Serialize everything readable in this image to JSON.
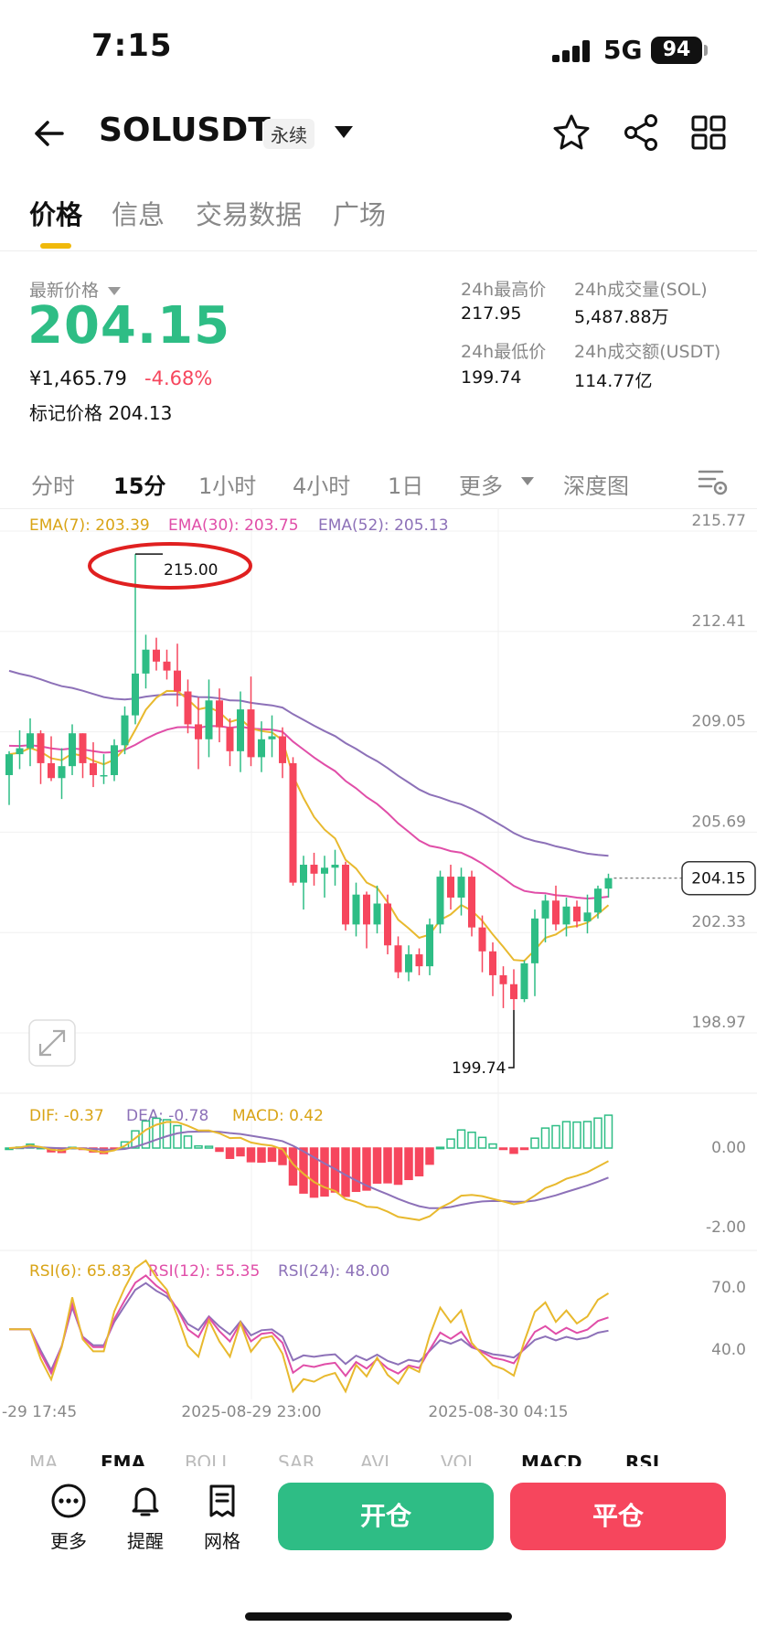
{
  "status_bar": {
    "time": "7:15",
    "network": "5G",
    "battery": "94"
  },
  "header": {
    "symbol": "SOLUSDT",
    "contract_type": "永续"
  },
  "tabs": [
    {
      "label": "价格",
      "active": true
    },
    {
      "label": "信息",
      "active": false
    },
    {
      "label": "交易数据",
      "active": false
    },
    {
      "label": "广场",
      "active": false
    }
  ],
  "price": {
    "label": "最新价格",
    "last": "204.15",
    "cny": "¥1,465.79",
    "change_pct": "-4.68%",
    "mark_label": "标记价格",
    "mark": "204.13"
  },
  "stats": {
    "high_label": "24h最高价",
    "high": "217.95",
    "low_label": "24h最低价",
    "low": "199.74",
    "vol_label": "24h成交量(SOL)",
    "vol": "5,487.88万",
    "amt_label": "24h成交额(USDT)",
    "amt": "114.77亿"
  },
  "timeframes": [
    "分时",
    "15分",
    "1小时",
    "4小时",
    "1日",
    "更多",
    "深度图"
  ],
  "active_timeframe": "15分",
  "chart_data": {
    "type": "candlestick",
    "ema_legend": {
      "ema7": "EMA(7): 203.39",
      "ema30": "EMA(30): 203.75",
      "ema52": "EMA(52): 205.13"
    },
    "y_ticks": [
      "215.77",
      "212.41",
      "209.05",
      "205.69",
      "202.33",
      "198.97"
    ],
    "ylim": [
      198.97,
      215.77
    ],
    "x_ticks": [
      "-29 17:45",
      "2025-08-29 23:00",
      "2025-08-30 04:15"
    ],
    "high_marker": "215.00",
    "low_marker": "199.74",
    "current_price_tag": "204.15",
    "candles": [
      [
        207.6,
        208.4,
        206.6,
        208.3
      ],
      [
        208.3,
        209.1,
        207.8,
        208.5
      ],
      [
        208.5,
        209.5,
        207.9,
        209.0
      ],
      [
        209.0,
        209.1,
        207.3,
        208.0
      ],
      [
        208.0,
        208.9,
        207.4,
        207.5
      ],
      [
        207.5,
        208.5,
        206.8,
        207.9
      ],
      [
        207.9,
        209.3,
        207.6,
        209.0
      ],
      [
        209.0,
        209.0,
        207.5,
        208.0
      ],
      [
        208.0,
        208.7,
        207.2,
        207.6
      ],
      [
        207.6,
        208.3,
        207.3,
        207.6
      ],
      [
        207.6,
        208.8,
        207.4,
        208.6
      ],
      [
        208.6,
        209.9,
        208.3,
        209.6
      ],
      [
        209.6,
        215.0,
        209.3,
        211.0
      ],
      [
        211.0,
        212.3,
        210.5,
        211.8
      ],
      [
        211.8,
        212.2,
        211.1,
        211.4
      ],
      [
        211.4,
        211.8,
        210.8,
        211.1
      ],
      [
        211.1,
        212.0,
        209.9,
        210.4
      ],
      [
        210.4,
        210.8,
        209.0,
        209.3
      ],
      [
        209.3,
        210.2,
        207.8,
        208.8
      ],
      [
        208.8,
        210.8,
        208.2,
        210.1
      ],
      [
        210.1,
        210.5,
        208.7,
        209.2
      ],
      [
        209.2,
        209.5,
        207.9,
        208.4
      ],
      [
        208.4,
        210.4,
        207.7,
        209.8
      ],
      [
        209.8,
        210.9,
        207.9,
        208.2
      ],
      [
        208.2,
        209.4,
        207.7,
        208.8
      ],
      [
        208.8,
        209.6,
        208.2,
        208.9
      ],
      [
        208.9,
        209.2,
        207.5,
        208.0
      ],
      [
        208.0,
        208.2,
        203.9,
        204.0
      ],
      [
        204.0,
        204.9,
        203.1,
        204.6
      ],
      [
        204.6,
        205.0,
        203.9,
        204.3
      ],
      [
        204.3,
        204.9,
        203.5,
        204.5
      ],
      [
        204.5,
        205.1,
        203.9,
        204.6
      ],
      [
        204.6,
        204.7,
        202.4,
        202.6
      ],
      [
        202.6,
        204.0,
        202.2,
        203.6
      ],
      [
        203.6,
        203.7,
        201.8,
        202.6
      ],
      [
        202.6,
        203.9,
        202.3,
        203.3
      ],
      [
        203.3,
        203.6,
        201.6,
        201.9
      ],
      [
        201.9,
        202.2,
        200.8,
        201.0
      ],
      [
        201.0,
        201.9,
        200.7,
        201.6
      ],
      [
        201.6,
        201.8,
        200.9,
        201.2
      ],
      [
        201.2,
        202.8,
        200.9,
        202.6
      ],
      [
        202.6,
        204.4,
        202.3,
        204.2
      ],
      [
        204.2,
        204.6,
        203.1,
        203.5
      ],
      [
        203.5,
        204.5,
        202.9,
        204.2
      ],
      [
        204.2,
        204.4,
        202.2,
        202.5
      ],
      [
        202.5,
        202.9,
        201.0,
        201.7
      ],
      [
        201.7,
        202.0,
        200.2,
        200.9
      ],
      [
        200.9,
        201.2,
        199.8,
        200.6
      ],
      [
        200.6,
        201.1,
        199.74,
        200.1
      ],
      [
        200.1,
        201.4,
        200.0,
        201.3
      ],
      [
        201.3,
        203.1,
        200.2,
        202.8
      ],
      [
        202.8,
        203.6,
        202.0,
        203.4
      ],
      [
        203.4,
        203.9,
        202.4,
        202.6
      ],
      [
        202.6,
        203.5,
        202.2,
        203.2
      ],
      [
        203.2,
        203.4,
        202.5,
        202.7
      ],
      [
        202.7,
        203.6,
        202.3,
        203.0
      ],
      [
        203.0,
        203.9,
        202.8,
        203.8
      ],
      [
        203.8,
        204.3,
        203.5,
        204.15
      ]
    ],
    "macd": {
      "dif_label": "DIF: -0.37",
      "dea_label": "DEA: -0.78",
      "macd_label": "MACD: 0.42",
      "y_ticks": [
        "0.00",
        "-2.00"
      ]
    },
    "rsi": {
      "rsi6_label": "RSI(6): 65.83",
      "rsi12_label": "RSI(12): 55.35",
      "rsi24_label": "RSI(24): 48.00",
      "y_ticks": [
        "70.0",
        "40.0"
      ]
    }
  },
  "indicator_tabs": [
    "MA",
    "EMA",
    "BOLL",
    "SAR",
    "AVL",
    "VOL",
    "MACD",
    "RSI"
  ],
  "bottom": {
    "more": "更多",
    "alert": "提醒",
    "grid": "网格",
    "open": "开仓",
    "close": "平仓"
  },
  "colors": {
    "up": "#2ebd85",
    "down": "#f6465d",
    "ema7": "#e8b92e",
    "ema30": "#e04ea8",
    "ema52": "#8d71b8",
    "accent": "#f0b90b"
  }
}
